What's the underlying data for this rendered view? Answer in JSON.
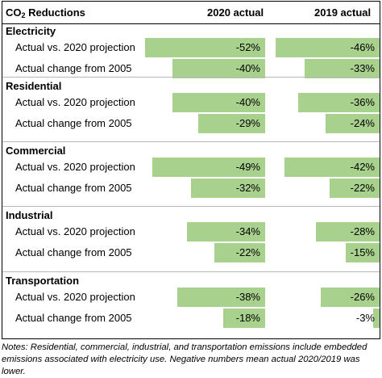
{
  "header": {
    "title_prefix": "CO",
    "title_sub": "2",
    "title_suffix": " Reductions",
    "col1": "2020 actual",
    "col2": "2019 actual"
  },
  "colors": {
    "bar": "#a9d18e"
  },
  "chart_data": {
    "type": "bar",
    "sections": [
      {
        "name": "Electricity",
        "rows": [
          {
            "label": "Actual vs. 2020 projection",
            "v2020": -52,
            "v2019": -46,
            "t2020": "-52%",
            "t2019": "-46%"
          },
          {
            "label": "Actual change from 2005",
            "v2020": -40,
            "v2019": -33,
            "t2020": "-40%",
            "t2019": "-33%"
          }
        ]
      },
      {
        "name": "Residential",
        "rows": [
          {
            "label": "Actual vs. 2020 projection",
            "v2020": -40,
            "v2019": -36,
            "t2020": "-40%",
            "t2019": "-36%"
          },
          {
            "label": "Actual change from 2005",
            "v2020": -29,
            "v2019": -24,
            "t2020": "-29%",
            "t2019": "-24%"
          }
        ]
      },
      {
        "name": "Commercial",
        "rows": [
          {
            "label": "Actual vs. 2020 projection",
            "v2020": -49,
            "v2019": -42,
            "t2020": "-49%",
            "t2019": "-42%"
          },
          {
            "label": "Actual change from 2005",
            "v2020": -32,
            "v2019": -22,
            "t2020": "-32%",
            "t2019": "-22%"
          }
        ]
      },
      {
        "name": "Industrial",
        "rows": [
          {
            "label": "Actual vs. 2020 projection",
            "v2020": -34,
            "v2019": -28,
            "t2020": "-34%",
            "t2019": "-28%"
          },
          {
            "label": "Actual change from 2005",
            "v2020": -22,
            "v2019": -15,
            "t2020": "-22%",
            "t2019": "-15%"
          }
        ]
      },
      {
        "name": "Transportation",
        "rows": [
          {
            "label": "Actual vs. 2020 projection",
            "v2020": -38,
            "v2019": -26,
            "t2020": "-38%",
            "t2019": "-26%"
          },
          {
            "label": "Actual change from 2005",
            "v2020": -18,
            "v2019": -3,
            "t2020": "-18%",
            "t2019": "-3%"
          }
        ]
      }
    ]
  },
  "notes": "Notes: Residential, commercial, industrial, and transportation emissions include embedded emissions associated with electricity use. Negative numbers mean actual 2020/2019 was lower."
}
